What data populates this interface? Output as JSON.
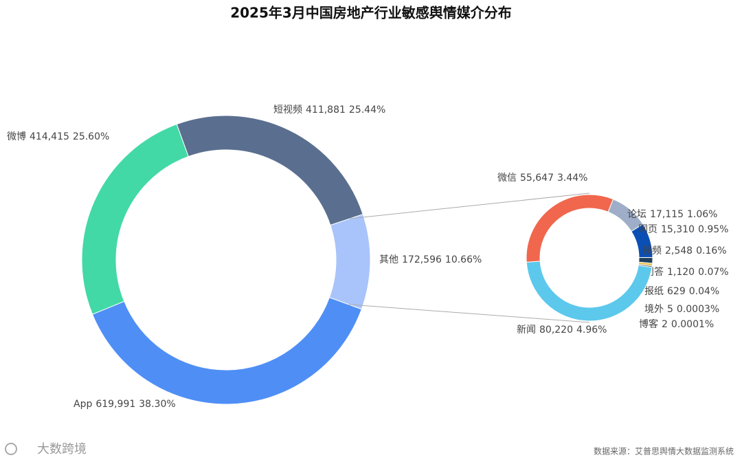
{
  "chart_data": [
    {
      "type": "donut",
      "title": "2025年3月中国房地产行业敏感舆情媒介分布",
      "categories": [
        "短视频",
        "其他",
        "App",
        "微博"
      ],
      "values": [
        411881,
        172596,
        619991,
        414415
      ],
      "value_labels": [
        "411,881",
        "172,596",
        "619,991",
        "414,415"
      ],
      "percents": [
        25.44,
        10.66,
        38.3,
        25.6
      ],
      "percent_labels": [
        "25.44%",
        "10.66%",
        "38.30%",
        "25.60%"
      ],
      "colors": [
        "#5a6f8f",
        "#a9c4fa",
        "#4f8ff5",
        "#42d9a6"
      ]
    },
    {
      "type": "donut",
      "categories": [
        "微信",
        "论坛",
        "网页",
        "视频",
        "问答",
        "报纸",
        "境外",
        "博客",
        "新闻"
      ],
      "values": [
        55647,
        17115,
        15310,
        2548,
        1120,
        629,
        5,
        2,
        80220
      ],
      "value_labels": [
        "55,647",
        "17,115",
        "15,310",
        "2,548",
        "1,120",
        "629",
        "5",
        "2",
        "80,220"
      ],
      "percents": [
        3.44,
        1.06,
        0.95,
        0.16,
        0.07,
        0.04,
        0.0003,
        0.0001,
        4.96
      ],
      "percent_labels": [
        "3.44%",
        "1.06%",
        "0.95%",
        "0.16%",
        "0.07%",
        "0.04%",
        "0.0003%",
        "0.0001%",
        "4.96%"
      ],
      "colors": [
        "#f0674e",
        "#9eaec8",
        "#0b4fb5",
        "#1f3f5a",
        "#e7c14b",
        "#4c5a68",
        "#8a9aaa",
        "#b0b0b0",
        "#5cc8ec"
      ]
    }
  ],
  "source": "数据来源：艾普思舆情大数据监测系统",
  "logo": "大数跨境"
}
